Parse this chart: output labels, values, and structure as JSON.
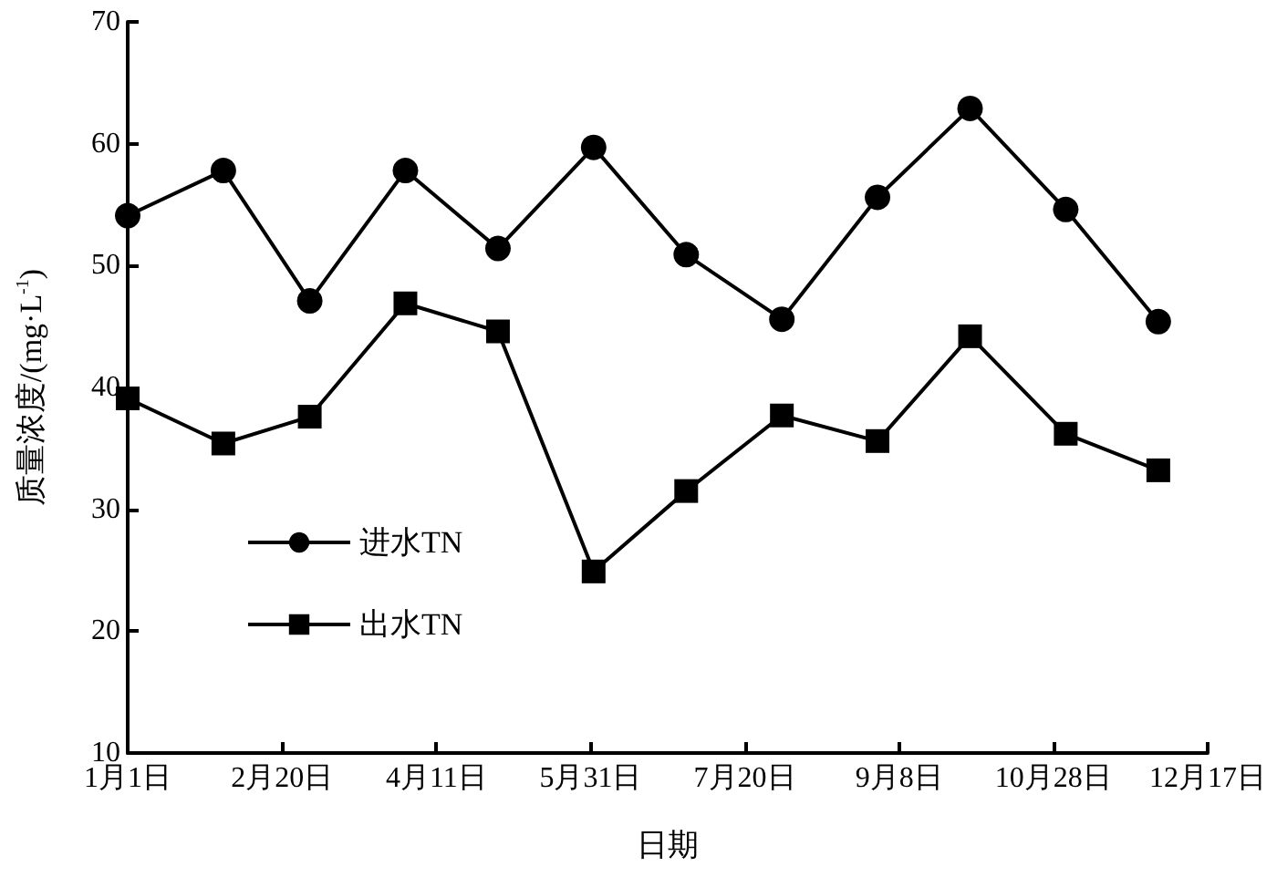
{
  "chart_data": {
    "type": "line",
    "xlabel": "日期",
    "ylabel": "质量浓度/(mg·L$^{-1}$)",
    "x": [
      "--01-01",
      "--02-01",
      "--03-01",
      "--04-01",
      "--05-01",
      "--06-01",
      "--07-01",
      "--08-01",
      "--09-01",
      "--10-01",
      "--11-01",
      "--12-01"
    ],
    "series": [
      {
        "name": "进水TN",
        "color": "#000000",
        "marker": "circle",
        "values": [
          54.1,
          57.8,
          47.1,
          57.8,
          51.4,
          59.7,
          50.9,
          45.6,
          55.6,
          62.9,
          54.6,
          45.4
        ]
      },
      {
        "name": "出水TN",
        "color": "#000000",
        "marker": "square",
        "values": [
          39.1,
          35.4,
          37.6,
          46.9,
          44.6,
          24.9,
          31.5,
          37.7,
          35.6,
          44.2,
          36.2,
          33.2
        ]
      }
    ],
    "xlim": [
      "--01-01",
      "--12-17"
    ],
    "xticks": [
      {
        "value": "--01-01",
        "label": "1月1日"
      },
      {
        "value": "--02-20",
        "label": "2月20日"
      },
      {
        "value": "--04-11",
        "label": "4月11日"
      },
      {
        "value": "--05-31",
        "label": "5月31日"
      },
      {
        "value": "--07-20",
        "label": "7月20日"
      },
      {
        "value": "--09-08",
        "label": "9月8日"
      },
      {
        "value": "--10-28",
        "label": "10月28日"
      },
      {
        "value": "--12-17",
        "label": "12月17日"
      }
    ],
    "ylim": [
      10,
      70
    ],
    "yticks": [
      10,
      20,
      30,
      40,
      50,
      60,
      70
    ],
    "grid": false,
    "legend": "bottom left",
    "line_style": "solid"
  }
}
